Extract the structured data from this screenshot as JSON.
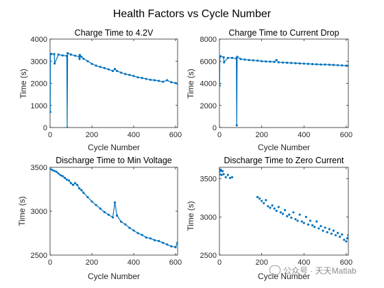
{
  "figure": {
    "title": "Health Factors vs Cycle Number",
    "watermark": "公众号 · 天天Matlab",
    "line_color": "#0072BD"
  },
  "chart_data": [
    {
      "type": "line",
      "title": "Charge Time to 4.2V",
      "xlabel": "Cycle Number",
      "ylabel": "Time (s)",
      "xlim": [
        0,
        610
      ],
      "ylim": [
        0,
        4000
      ],
      "xticks": [
        0,
        200,
        400,
        600
      ],
      "yticks": [
        0,
        1000,
        2000,
        3000,
        4000
      ],
      "series": [
        {
          "marker": "dot-line",
          "x": [
            1,
            2,
            5,
            20,
            22,
            40,
            60,
            80,
            82,
            84,
            100,
            120,
            140,
            141,
            142,
            150,
            160,
            180,
            200,
            220,
            240,
            260,
            280,
            300,
            310,
            320,
            340,
            360,
            380,
            400,
            420,
            440,
            460,
            480,
            500,
            520,
            540,
            560,
            580,
            600,
            609
          ],
          "y": [
            700,
            3320,
            3330,
            3320,
            2900,
            3300,
            3260,
            3240,
            0,
            3360,
            3300,
            3250,
            3200,
            3100,
            3280,
            3200,
            3110,
            3000,
            2880,
            2800,
            2740,
            2690,
            2630,
            2560,
            2650,
            2560,
            2480,
            2420,
            2380,
            2330,
            2270,
            2240,
            2200,
            2160,
            2140,
            2110,
            2070,
            2140,
            2050,
            2010,
            1990
          ]
        }
      ]
    },
    {
      "type": "line",
      "title": "Charge Time to Current Drop",
      "xlabel": "Cycle Number",
      "ylabel": "Time (s)",
      "xlim": [
        0,
        610
      ],
      "ylim": [
        0,
        8000
      ],
      "xticks": [
        0,
        200,
        400,
        600
      ],
      "yticks": [
        0,
        2000,
        4000,
        6000,
        8000
      ],
      "series": [
        {
          "marker": "dot-line",
          "x": [
            1,
            2,
            5,
            20,
            22,
            40,
            60,
            80,
            82,
            84,
            100,
            120,
            140,
            160,
            180,
            200,
            220,
            240,
            260,
            270,
            280,
            300,
            320,
            340,
            360,
            380,
            400,
            420,
            440,
            460,
            480,
            500,
            520,
            540,
            560,
            580,
            600,
            609
          ],
          "y": [
            3800,
            6400,
            6450,
            6350,
            5900,
            6300,
            6300,
            6250,
            200,
            6400,
            6200,
            6150,
            6100,
            6080,
            6050,
            6000,
            5980,
            5960,
            5940,
            6100,
            5900,
            5880,
            5860,
            5840,
            5820,
            5800,
            5780,
            5760,
            5740,
            5720,
            5700,
            5700,
            5680,
            5660,
            5640,
            5620,
            5600,
            5580
          ]
        }
      ]
    },
    {
      "type": "scatter",
      "title": "Discharge Time to Min Voltage",
      "xlabel": "Cycle Number",
      "ylabel": "Time (s)",
      "xlim": [
        0,
        610
      ],
      "ylim": [
        2500,
        3500
      ],
      "xticks": [
        0,
        200,
        400,
        600
      ],
      "yticks": [
        2500,
        3000,
        3500
      ],
      "series": [
        {
          "marker": "dot-line",
          "x": [
            1,
            10,
            20,
            30,
            40,
            50,
            60,
            70,
            80,
            90,
            100,
            110,
            120,
            130,
            140,
            150,
            160,
            180,
            200,
            220,
            240,
            260,
            280,
            300,
            310,
            320,
            340,
            360,
            380,
            400,
            420,
            440,
            460,
            480,
            500,
            520,
            540,
            560,
            580,
            600,
            609
          ],
          "y": [
            3480,
            3470,
            3460,
            3450,
            3430,
            3410,
            3400,
            3380,
            3360,
            3350,
            3320,
            3300,
            3320,
            3300,
            3260,
            3240,
            3210,
            3160,
            3110,
            3070,
            3030,
            2990,
            2960,
            2930,
            3100,
            2950,
            2880,
            2850,
            2810,
            2780,
            2750,
            2730,
            2700,
            2690,
            2670,
            2660,
            2640,
            2620,
            2600,
            2590,
            2640
          ]
        }
      ]
    },
    {
      "type": "scatter",
      "title": "Discharge Time to Zero Current",
      "xlabel": "Cycle Number",
      "ylabel": "Time (s)",
      "xlim": [
        0,
        610
      ],
      "ylim": [
        2500,
        3650
      ],
      "xticks": [
        0,
        200,
        400,
        600
      ],
      "yticks": [
        2500,
        3000,
        3500
      ],
      "series": [
        {
          "marker": "dot",
          "x": [
            1,
            3,
            5,
            8,
            10,
            15,
            20,
            30,
            40,
            50,
            60,
            180,
            190,
            200,
            210,
            220,
            230,
            240,
            250,
            260,
            270,
            280,
            290,
            300,
            310,
            320,
            330,
            340,
            350,
            360,
            370,
            380,
            390,
            400,
            410,
            420,
            430,
            440,
            450,
            460,
            470,
            480,
            490,
            500,
            510,
            520,
            530,
            540,
            550,
            560,
            570,
            580,
            590,
            600,
            605,
            609
          ],
          "y": [
            3560,
            3600,
            3620,
            3610,
            3550,
            3600,
            3560,
            3520,
            3550,
            3510,
            3520,
            3260,
            3240,
            3210,
            3180,
            3220,
            3140,
            3120,
            3150,
            3110,
            3080,
            3130,
            3060,
            3040,
            3090,
            3010,
            3030,
            2990,
            3060,
            2970,
            2950,
            3030,
            2940,
            2920,
            3000,
            2900,
            2950,
            2890,
            2870,
            2940,
            2850,
            2880,
            2820,
            2860,
            2800,
            2840,
            2780,
            2820,
            2760,
            2790,
            2740,
            2770,
            2700,
            2680,
            2720,
            2760
          ]
        }
      ]
    }
  ]
}
